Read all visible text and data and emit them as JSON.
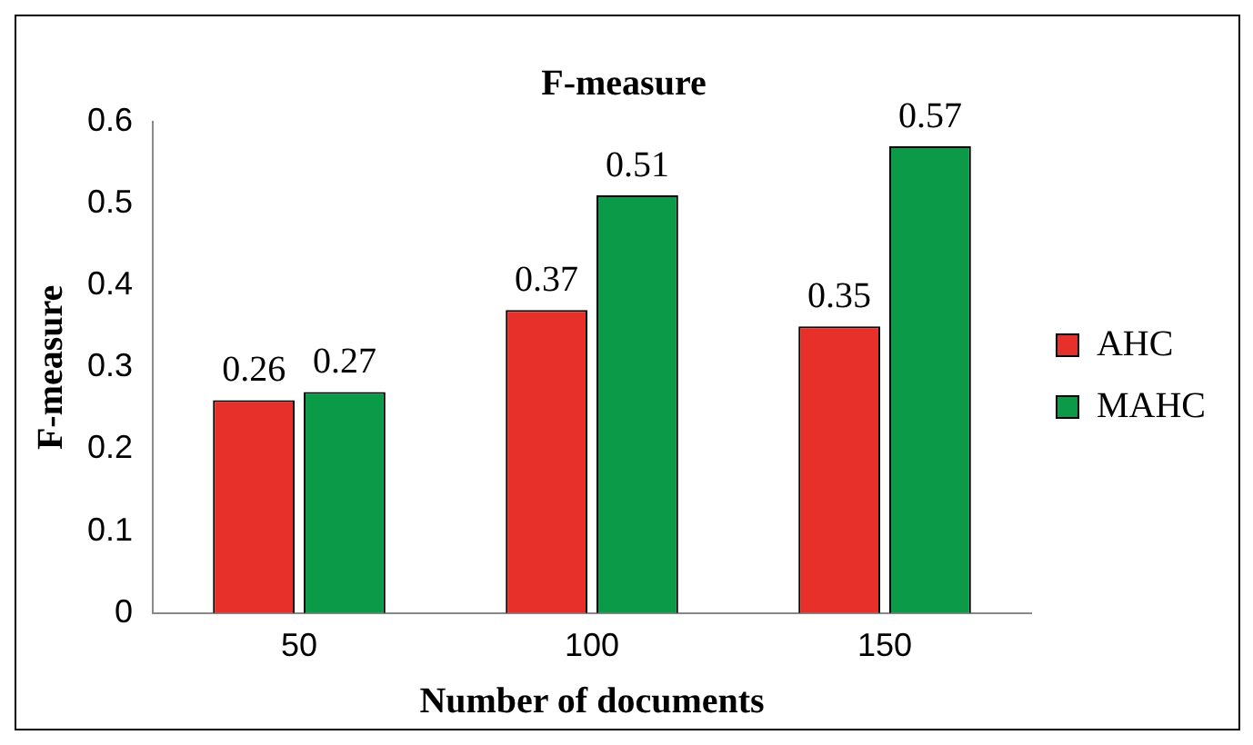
{
  "chart_data": {
    "type": "bar",
    "title": "F-measure",
    "xlabel": "Number of documents",
    "ylabel": "F-measure",
    "categories": [
      "50",
      "100",
      "150"
    ],
    "series": [
      {
        "name": "AHC",
        "color": "#e8302a",
        "values": [
          0.26,
          0.37,
          0.35
        ]
      },
      {
        "name": "MAHC",
        "color": "#0a9a48",
        "values": [
          0.27,
          0.51,
          0.57
        ]
      }
    ],
    "ylim": [
      0,
      0.6
    ],
    "yticks": [
      0,
      0.1,
      0.2,
      0.3,
      0.4,
      0.5,
      0.6
    ],
    "grid": false,
    "legend": "right",
    "data_labels": true
  }
}
